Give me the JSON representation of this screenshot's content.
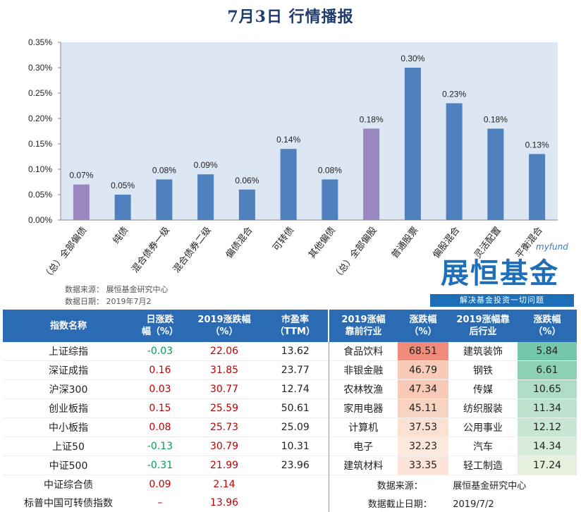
{
  "title": "7月3日  行情播报",
  "chart_data": {
    "type": "bar",
    "categories": [
      "（总）全部偏债",
      "纯债",
      "混合债券一级",
      "混合债券二级",
      "偏债混合",
      "可转债",
      "其他偏债",
      "（总）全部偏股",
      "普通股票",
      "偏股混合",
      "灵活配置",
      "平衡混合"
    ],
    "values": [
      0.07,
      0.05,
      0.08,
      0.09,
      0.06,
      0.14,
      0.08,
      0.18,
      0.3,
      0.23,
      0.18,
      0.13
    ],
    "value_labels": [
      "0.07%",
      "0.05%",
      "0.08%",
      "0.09%",
      "0.06%",
      "0.14%",
      "0.08%",
      "0.18%",
      "0.30%",
      "0.23%",
      "0.18%",
      "0.13%"
    ],
    "highlight": [
      true,
      false,
      false,
      false,
      false,
      false,
      false,
      true,
      false,
      false,
      false,
      false
    ],
    "yticks": [
      "0.00%",
      "0.05%",
      "0.10%",
      "0.15%",
      "0.20%",
      "0.25%",
      "0.30%",
      "0.35%"
    ],
    "ylim": [
      0,
      0.35
    ],
    "colors": {
      "bar": "#4e81bd",
      "highlight": "#9b87c0",
      "plot_bg": "#dde7f3"
    }
  },
  "source": {
    "line1": "数据来源：  展恒基金研究中心",
    "line2": "数据日期：  2019年7月2"
  },
  "logo": {
    "small": "myfund",
    "main": "展恒基金",
    "slogan": "解决基金投资一切问题"
  },
  "table": {
    "headers": {
      "name": "指数名称",
      "day": "日涨跌\n幅（%）",
      "ytd": "2019涨跌幅\n（%）",
      "pe": "市盈率\n（TTM）",
      "top_ind": "2019涨幅\n靠前行业",
      "top_chg": "涨跌幅\n（%）",
      "bot_ind": "2019涨幅靠\n后行业",
      "bot_chg": "涨跌幅\n（%）"
    },
    "rows": [
      {
        "name": "上证综指",
        "day": "-0.03",
        "ytd": "22.06",
        "pe": "13.62",
        "ti": "食品饮料",
        "tc": "68.51",
        "bi": "建筑装饰",
        "bc": "5.84"
      },
      {
        "name": "深证成指",
        "day": "0.16",
        "ytd": "31.85",
        "pe": "23.77",
        "ti": "非银金融",
        "tc": "46.79",
        "bi": "钢铁",
        "bc": "6.61"
      },
      {
        "name": "沪深300",
        "day": "0.03",
        "ytd": "30.77",
        "pe": "12.74",
        "ti": "农林牧渔",
        "tc": "47.34",
        "bi": "传媒",
        "bc": "10.65"
      },
      {
        "name": "创业板指",
        "day": "0.15",
        "ytd": "25.59",
        "pe": "50.61",
        "ti": "家用电器",
        "tc": "45.11",
        "bi": "纺织服装",
        "bc": "11.34"
      },
      {
        "name": "中小板指",
        "day": "0.08",
        "ytd": "25.73",
        "pe": "25.09",
        "ti": "计算机",
        "tc": "37.53",
        "bi": "公用事业",
        "bc": "12.12"
      },
      {
        "name": "上证50",
        "day": "-0.13",
        "ytd": "30.79",
        "pe": "10.31",
        "ti": "电子",
        "tc": "32.23",
        "bi": "汽车",
        "bc": "14.34"
      },
      {
        "name": "中证500",
        "day": "-0.31",
        "ytd": "21.99",
        "pe": "23.96",
        "ti": "建筑材料",
        "tc": "33.35",
        "bi": "轻工制造",
        "bc": "17.24"
      }
    ],
    "extra_rows": [
      {
        "name": "中证综合债",
        "day": "0.09",
        "ytd": "2.14"
      },
      {
        "name": "标普中国可转债指数",
        "day": "–",
        "ytd": "13.96"
      }
    ],
    "footer": {
      "src_label": "数据来源：",
      "src_value": "展恒基金研究中心",
      "date_label": "数据截止日期：",
      "date_value": "2019/7/2"
    },
    "colors": {
      "top_chg": [
        "#f08a7a",
        "#f8cbb8",
        "#f8c9b5",
        "#f9d3c2",
        "#fbe1d2",
        "#fce8dc",
        "#fce5d8"
      ],
      "bot_chg": [
        "#74c7a8",
        "#8dd0b5",
        "#aedcc6",
        "#bde2ce",
        "#c9e6d4",
        "#d8ecdb",
        "#e5f0dd"
      ]
    }
  }
}
